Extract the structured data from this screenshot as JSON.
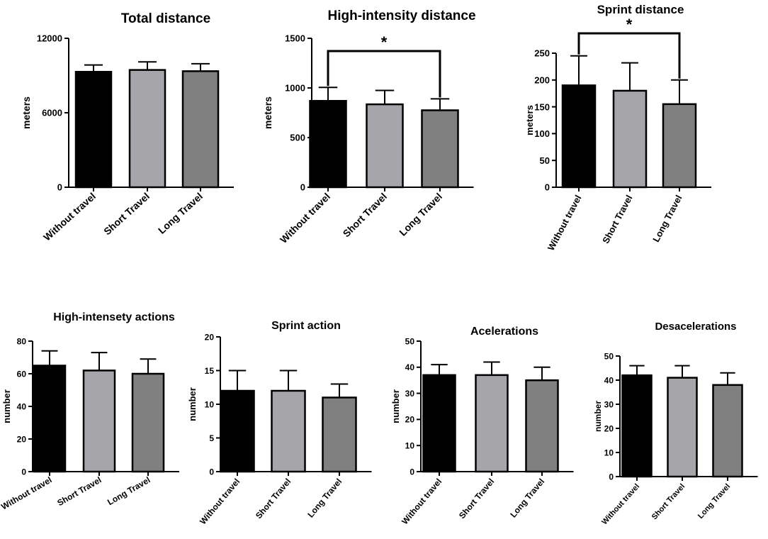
{
  "colors": {
    "without_travel": "#000000",
    "short_travel": "#a6a6aa",
    "long_travel": "#808080",
    "outline": "#000000"
  },
  "chart_data": [
    {
      "type": "bar",
      "title": "Total distance",
      "ylabel": "meters",
      "categories": [
        "Without travel",
        "Short Travel",
        "Long Travel"
      ],
      "values": [
        9300,
        9450,
        9350
      ],
      "errors": [
        550,
        650,
        600
      ],
      "ylim": [
        0,
        12000
      ],
      "yticks": [
        0,
        6000,
        12000
      ],
      "significance": []
    },
    {
      "type": "bar",
      "title": "High-intensity distance",
      "ylabel": "meters",
      "categories": [
        "Without travel",
        "Short Travel",
        "Long Travel"
      ],
      "values": [
        870,
        835,
        775
      ],
      "errors": [
        135,
        140,
        115
      ],
      "ylim": [
        0,
        1500
      ],
      "yticks": [
        0,
        500,
        1000,
        1500
      ],
      "significance": [
        {
          "from": 0,
          "to": 2,
          "label": "*"
        }
      ]
    },
    {
      "type": "bar",
      "title": "Sprint distance",
      "ylabel": "meters",
      "categories": [
        "Without travel",
        "Short Travel",
        "Long Travel"
      ],
      "values": [
        190,
        180,
        155
      ],
      "errors": [
        55,
        52,
        45
      ],
      "ylim": [
        0,
        250
      ],
      "yticks": [
        0,
        50,
        100,
        150,
        200,
        250
      ],
      "significance": [
        {
          "from": 0,
          "to": 2,
          "label": "*"
        }
      ]
    },
    {
      "type": "bar",
      "title": "High-intensety actions",
      "ylabel": "number",
      "categories": [
        "Without travel",
        "Short Travel",
        "Long Travel"
      ],
      "values": [
        65,
        62,
        60
      ],
      "errors": [
        9,
        11,
        9
      ],
      "ylim": [
        0,
        80
      ],
      "yticks": [
        0,
        20,
        40,
        60,
        80
      ],
      "significance": []
    },
    {
      "type": "bar",
      "title": "Sprint action",
      "ylabel": "number",
      "categories": [
        "Without travel",
        "Short Travel",
        "Long Travel"
      ],
      "values": [
        12,
        12,
        11
      ],
      "errors": [
        3,
        3,
        2
      ],
      "ylim": [
        0,
        20
      ],
      "yticks": [
        0,
        5,
        10,
        15,
        20
      ],
      "significance": []
    },
    {
      "type": "bar",
      "title": "Acelerations",
      "ylabel": "number",
      "categories": [
        "Without travel",
        "Short Travel",
        "Long Travel"
      ],
      "values": [
        37,
        37,
        35
      ],
      "errors": [
        4,
        5,
        5
      ],
      "ylim": [
        0,
        50
      ],
      "yticks": [
        0,
        10,
        20,
        30,
        40,
        50
      ],
      "significance": []
    },
    {
      "type": "bar",
      "title": "Desacelerations",
      "ylabel": "number",
      "categories": [
        "Without travel",
        "Short Travel",
        "Long Travel"
      ],
      "values": [
        42,
        41,
        38
      ],
      "errors": [
        4,
        5,
        5
      ],
      "ylim": [
        0,
        50
      ],
      "yticks": [
        0,
        10,
        20,
        30,
        40,
        50
      ],
      "significance": []
    }
  ]
}
